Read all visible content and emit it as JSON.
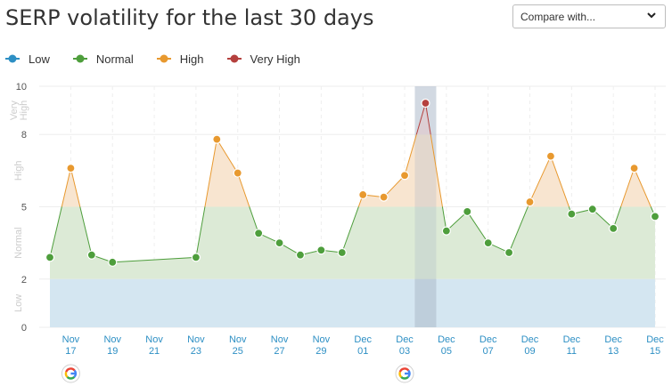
{
  "header": {
    "title": "SERP volatility for the last 30 days",
    "compare_label": "Compare with..."
  },
  "colors": {
    "low": "#2d8fc4",
    "normal": "#4e9e3c",
    "high": "#e8992f",
    "very_high": "#b5403e",
    "low_fill": "#d4e6f1",
    "normal_fill": "#dcead6",
    "high_fill": "#f8e5d0",
    "very_high_fill": "#f0dada",
    "grid": "#eeeeee",
    "tick_text": "#2d8fc4",
    "axis_text": "#555555",
    "zone_text": "#cccccc"
  },
  "legend": [
    {
      "label": "Low",
      "color": "#2d8fc4"
    },
    {
      "label": "Normal",
      "color": "#4e9e3c"
    },
    {
      "label": "High",
      "color": "#e8992f"
    },
    {
      "label": "Very High",
      "color": "#b5403e"
    }
  ],
  "chart_data": {
    "type": "area",
    "title": "SERP volatility for the last 30 days",
    "ylim": [
      0,
      10
    ],
    "yticks": [
      0,
      2,
      5,
      8,
      10
    ],
    "zones": [
      {
        "label": "Low",
        "from": 0,
        "to": 2
      },
      {
        "label": "Normal",
        "from": 2,
        "to": 5
      },
      {
        "label": "High",
        "from": 5,
        "to": 8
      },
      {
        "label": "Very High",
        "from": 8,
        "to": 10
      }
    ],
    "x_range": [
      "2023-11-16",
      "2023-12-15"
    ],
    "x_ticks": [
      {
        "date": "2023-11-17",
        "month": "Nov",
        "day": "17"
      },
      {
        "date": "2023-11-19",
        "month": "Nov",
        "day": "19"
      },
      {
        "date": "2023-11-21",
        "month": "Nov",
        "day": "21"
      },
      {
        "date": "2023-11-23",
        "month": "Nov",
        "day": "23"
      },
      {
        "date": "2023-11-25",
        "month": "Nov",
        "day": "25"
      },
      {
        "date": "2023-11-27",
        "month": "Nov",
        "day": "27"
      },
      {
        "date": "2023-11-29",
        "month": "Nov",
        "day": "29"
      },
      {
        "date": "2023-12-01",
        "month": "Dec",
        "day": "01"
      },
      {
        "date": "2023-12-03",
        "month": "Dec",
        "day": "03"
      },
      {
        "date": "2023-12-05",
        "month": "Dec",
        "day": "05"
      },
      {
        "date": "2023-12-07",
        "month": "Dec",
        "day": "07"
      },
      {
        "date": "2023-12-09",
        "month": "Dec",
        "day": "09"
      },
      {
        "date": "2023-12-11",
        "month": "Dec",
        "day": "11"
      },
      {
        "date": "2023-12-13",
        "month": "Dec",
        "day": "13"
      },
      {
        "date": "2023-12-15",
        "month": "Dec",
        "day": "15"
      }
    ],
    "highlight_date": "2023-12-04",
    "google_update_dates": [
      "2023-11-17",
      "2023-12-03"
    ],
    "points": [
      {
        "date": "2023-11-16",
        "value": 2.9
      },
      {
        "date": "2023-11-17",
        "value": 6.6
      },
      {
        "date": "2023-11-18",
        "value": 3.0
      },
      {
        "date": "2023-11-19",
        "value": 2.7
      },
      {
        "date": "2023-11-23",
        "value": 2.9
      },
      {
        "date": "2023-11-24",
        "value": 7.8
      },
      {
        "date": "2023-11-25",
        "value": 6.4
      },
      {
        "date": "2023-11-26",
        "value": 3.9
      },
      {
        "date": "2023-11-27",
        "value": 3.5
      },
      {
        "date": "2023-11-28",
        "value": 3.0
      },
      {
        "date": "2023-11-29",
        "value": 3.2
      },
      {
        "date": "2023-11-30",
        "value": 3.1
      },
      {
        "date": "2023-12-01",
        "value": 5.5
      },
      {
        "date": "2023-12-02",
        "value": 5.4
      },
      {
        "date": "2023-12-03",
        "value": 6.3
      },
      {
        "date": "2023-12-04",
        "value": 9.3
      },
      {
        "date": "2023-12-05",
        "value": 4.0
      },
      {
        "date": "2023-12-06",
        "value": 4.8
      },
      {
        "date": "2023-12-07",
        "value": 3.5
      },
      {
        "date": "2023-12-08",
        "value": 3.1
      },
      {
        "date": "2023-12-09",
        "value": 5.2
      },
      {
        "date": "2023-12-10",
        "value": 7.1
      },
      {
        "date": "2023-12-11",
        "value": 4.7
      },
      {
        "date": "2023-12-12",
        "value": 4.9
      },
      {
        "date": "2023-12-13",
        "value": 4.1
      },
      {
        "date": "2023-12-14",
        "value": 6.6
      },
      {
        "date": "2023-12-15",
        "value": 4.6
      }
    ]
  }
}
